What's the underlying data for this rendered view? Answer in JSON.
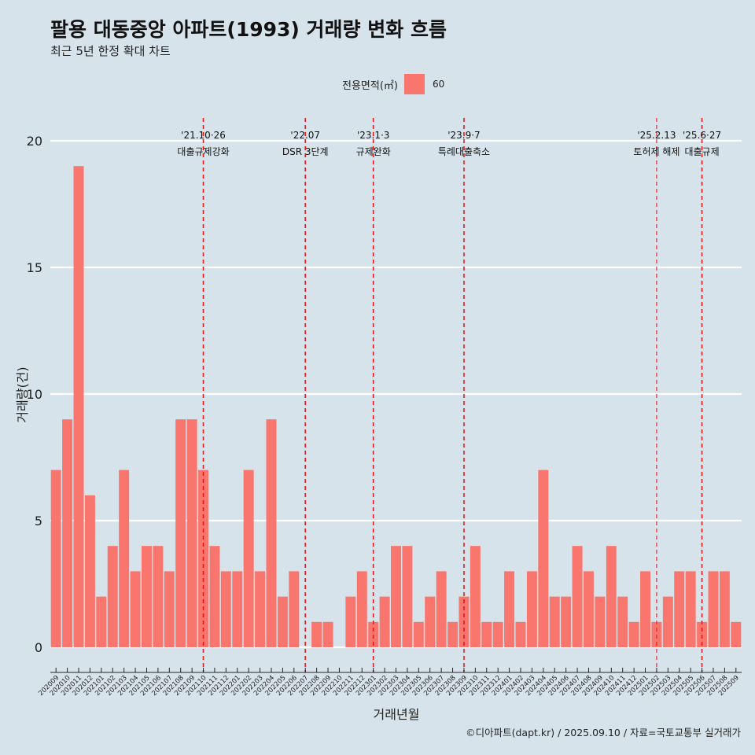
{
  "title": "팔용 대동중앙 아파트(1993) 거래량 변화 흐름",
  "subtitle": "최근 5년 한정 확대 차트",
  "legend": {
    "title": "전용면적(㎡)",
    "items": [
      {
        "label": "60",
        "color": "#f8766d"
      }
    ]
  },
  "caption": "©디아파트(dapt.kr) / 2025.09.10 / 자료=국토교통부 실거래가",
  "colors": {
    "background": "#d7e3eb",
    "bar": "#f8766d",
    "event_line": "#e41a1c",
    "grid": "#ffffff"
  },
  "chart_data": {
    "type": "bar",
    "xlabel": "거래년월",
    "ylabel": "거래량(건)",
    "ylim": [
      0,
      20
    ],
    "yticks": [
      0,
      5,
      10,
      15,
      20
    ],
    "grid": true,
    "legend_position": "top",
    "categories": [
      "202009",
      "202010",
      "202011",
      "202012",
      "202101",
      "202102",
      "202103",
      "202104",
      "202105",
      "202106",
      "202107",
      "202108",
      "202109",
      "202110",
      "202111",
      "202112",
      "202201",
      "202202",
      "202203",
      "202204",
      "202205",
      "202206",
      "202207",
      "202208",
      "202209",
      "202210",
      "202211",
      "202212",
      "202301",
      "202302",
      "202303",
      "202304",
      "202305",
      "202306",
      "202307",
      "202308",
      "202309",
      "202310",
      "202311",
      "202312",
      "202401",
      "202402",
      "202403",
      "202404",
      "202405",
      "202406",
      "202407",
      "202408",
      "202409",
      "202410",
      "202411",
      "202412",
      "202501",
      "202502",
      "202503",
      "202504",
      "202505",
      "202506",
      "202507",
      "202508",
      "202509"
    ],
    "series": [
      {
        "name": "60",
        "values": [
          7,
          9,
          19,
          6,
          2,
          4,
          7,
          3,
          4,
          4,
          3,
          9,
          9,
          7,
          4,
          3,
          3,
          7,
          3,
          9,
          2,
          3,
          0,
          1,
          1,
          0,
          2,
          3,
          1,
          2,
          4,
          4,
          1,
          2,
          3,
          1,
          2,
          4,
          1,
          1,
          3,
          1,
          3,
          7,
          2,
          2,
          4,
          3,
          2,
          4,
          2,
          1,
          3,
          1,
          2,
          3,
          3,
          1,
          3,
          3,
          1
        ]
      }
    ],
    "events": [
      {
        "date": "'21.10·26",
        "label": "대출규제강화",
        "category": "202110",
        "style": "dashed"
      },
      {
        "date": "'22.07",
        "label": "DSR 3단계",
        "category": "202207",
        "style": "dashed"
      },
      {
        "date": "'23.1·3",
        "label": "규제완화",
        "category": "202301",
        "style": "dashed"
      },
      {
        "date": "'23.9·7",
        "label": "특례대출축소",
        "category": "202309",
        "style": "dashed"
      },
      {
        "date": "'25.2.13",
        "label": "토허제 해제",
        "category": "202502",
        "style": "thin-dashed"
      },
      {
        "date": "'25.6·27",
        "label": "대출규제",
        "category": "202506",
        "style": "dashed"
      }
    ]
  }
}
